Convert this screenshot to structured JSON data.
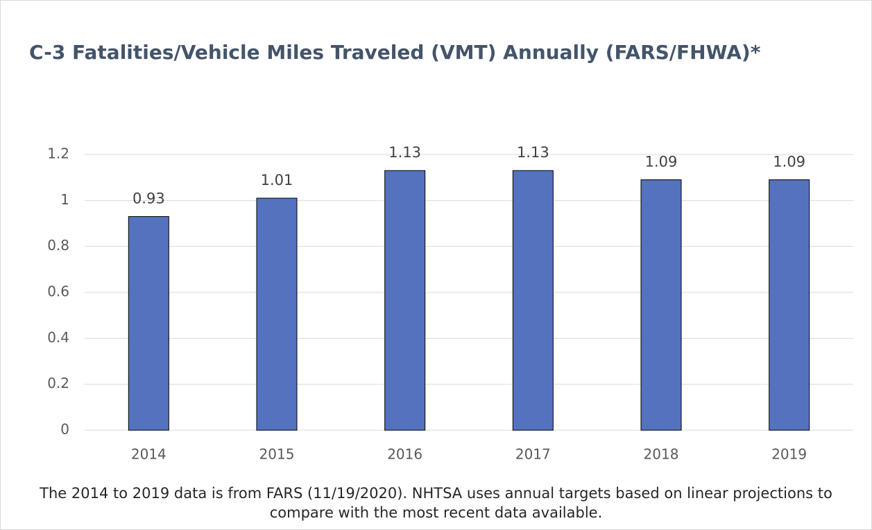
{
  "chart_data": {
    "type": "bar",
    "title": "C-3 Fatalities/Vehicle Miles Traveled (VMT) Annually (FARS/FHWA)*",
    "categories": [
      "2014",
      "2015",
      "2016",
      "2017",
      "2018",
      "2019"
    ],
    "values": [
      0.93,
      1.01,
      1.13,
      1.13,
      1.09,
      1.09
    ],
    "color": "#5472be",
    "ylim": [
      0,
      1.2
    ],
    "yticks": [
      0,
      0.2,
      0.4,
      0.6,
      0.8,
      1,
      1.2
    ],
    "grid": true,
    "note": "The 2014 to 2019 data is from FARS (11/19/2020). NHTSA uses annual targets based on linear projections to compare with the most recent data available."
  }
}
